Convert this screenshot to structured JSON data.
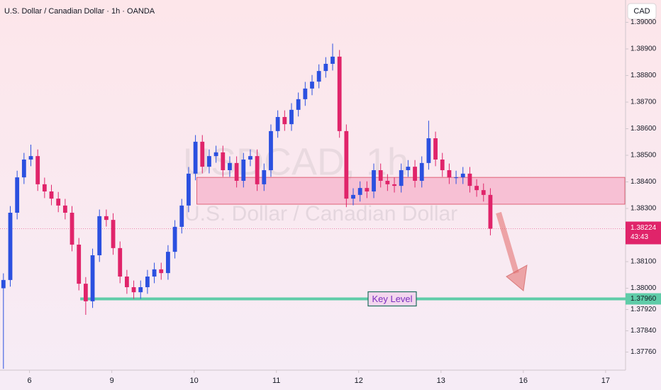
{
  "chart_data": {
    "type": "candlestick",
    "title": "U.S. Dollar / Canadian Dollar · 1h · OANDA",
    "watermark_symbol": "USDCAD, 1h",
    "watermark_name": "U.S. Dollar / Canadian Dollar",
    "currency": "CAD",
    "up_color": "#2b50e0",
    "down_color": "#e0246a",
    "open": [
      1.38,
      1.38031,
      1.38284,
      1.38417,
      1.38484,
      1.38497,
      1.38391,
      1.38364,
      1.38337,
      1.38311,
      1.38284,
      1.38164,
      1.38017,
      1.37951,
      1.38124,
      1.38271,
      1.38257,
      1.38151,
      1.38044,
      1.38004,
      1.37985,
      1.38004,
      1.38044,
      1.38071,
      1.38057,
      1.38137,
      1.38231,
      1.38311,
      1.38431,
      1.38551,
      1.38457,
      1.38497,
      1.38511,
      1.38444,
      1.38471,
      1.38404,
      1.38484,
      1.38497,
      1.38391,
      1.38444,
      1.38591,
      1.38644,
      1.38617,
      1.38671,
      1.38711,
      1.38751,
      1.38777,
      1.38817,
      1.38844,
      1.38871,
      1.38591,
      1.38337,
      1.38351,
      1.38377,
      1.38364,
      1.38444,
      1.38404,
      1.38391,
      1.38385,
      1.38444,
      1.38457,
      1.38404,
      1.38471,
      1.38564,
      1.38484,
      1.38444,
      1.38417,
      1.38417,
      1.38431,
      1.38385,
      1.38369,
      1.38351
    ],
    "high": [
      1.38056,
      1.38309,
      1.38442,
      1.38509,
      1.3854,
      1.38522,
      1.38416,
      1.38389,
      1.38362,
      1.38336,
      1.38309,
      1.38189,
      1.38042,
      1.38149,
      1.38296,
      1.38296,
      1.38282,
      1.38176,
      1.38069,
      1.38029,
      1.38029,
      1.38069,
      1.38096,
      1.38096,
      1.38162,
      1.38256,
      1.38336,
      1.38456,
      1.38576,
      1.38576,
      1.38522,
      1.38536,
      1.38536,
      1.38496,
      1.38496,
      1.38509,
      1.38522,
      1.38522,
      1.38469,
      1.38616,
      1.38669,
      1.38669,
      1.38696,
      1.38736,
      1.38776,
      1.38802,
      1.38842,
      1.38869,
      1.3892,
      1.38896,
      1.38616,
      1.38376,
      1.38402,
      1.38402,
      1.38469,
      1.38469,
      1.38429,
      1.38416,
      1.38469,
      1.38482,
      1.38482,
      1.38496,
      1.3863,
      1.38589,
      1.38509,
      1.38469,
      1.38442,
      1.38456,
      1.38456,
      1.3841,
      1.38394,
      1.38376
    ],
    "low": [
      1.37697,
      1.38006,
      1.38259,
      1.38392,
      1.38459,
      1.38366,
      1.38339,
      1.38312,
      1.38286,
      1.38259,
      1.38139,
      1.37992,
      1.379,
      1.37926,
      1.38099,
      1.38232,
      1.38126,
      1.38019,
      1.37979,
      1.3796,
      1.3796,
      1.37979,
      1.38019,
      1.38032,
      1.38032,
      1.38112,
      1.38206,
      1.38286,
      1.38406,
      1.38432,
      1.38432,
      1.38472,
      1.38419,
      1.38419,
      1.38379,
      1.38379,
      1.38459,
      1.38366,
      1.38366,
      1.38419,
      1.38566,
      1.38592,
      1.38592,
      1.38646,
      1.38686,
      1.38726,
      1.38752,
      1.38792,
      1.38819,
      1.38566,
      1.38305,
      1.38312,
      1.38326,
      1.38339,
      1.38339,
      1.38379,
      1.38366,
      1.3836,
      1.3836,
      1.38419,
      1.38379,
      1.38379,
      1.38446,
      1.38459,
      1.38419,
      1.38392,
      1.38392,
      1.38392,
      1.3836,
      1.38344,
      1.38326,
      1.38199
    ],
    "close": [
      1.38031,
      1.38284,
      1.38417,
      1.38484,
      1.38497,
      1.38391,
      1.38364,
      1.38337,
      1.38311,
      1.38284,
      1.38164,
      1.38017,
      1.37951,
      1.38124,
      1.38271,
      1.38257,
      1.38151,
      1.38044,
      1.38004,
      1.37985,
      1.38004,
      1.38044,
      1.38071,
      1.38057,
      1.38137,
      1.38231,
      1.38311,
      1.38431,
      1.38551,
      1.38457,
      1.38497,
      1.38511,
      1.38444,
      1.38471,
      1.38404,
      1.38484,
      1.38497,
      1.38391,
      1.38444,
      1.38591,
      1.38644,
      1.38617,
      1.38671,
      1.38711,
      1.38751,
      1.38777,
      1.38817,
      1.38844,
      1.38871,
      1.38591,
      1.38337,
      1.38351,
      1.38377,
      1.38364,
      1.38444,
      1.38404,
      1.38391,
      1.38385,
      1.38444,
      1.38457,
      1.38404,
      1.38471,
      1.38564,
      1.38484,
      1.38444,
      1.38417,
      1.38417,
      1.38431,
      1.38385,
      1.38369,
      1.38351,
      1.38224
    ],
    "xlim": [
      -0.5,
      90.5
    ],
    "xticks": [
      {
        "value": 3.8,
        "label": "6"
      },
      {
        "value": 15.8,
        "label": "9"
      },
      {
        "value": 27.8,
        "label": "10"
      },
      {
        "value": 39.8,
        "label": "11"
      },
      {
        "value": 51.8,
        "label": "12"
      },
      {
        "value": 63.8,
        "label": "13"
      },
      {
        "value": 75.8,
        "label": "16"
      },
      {
        "value": 87.8,
        "label": "17"
      }
    ],
    "ylim": [
      1.37692,
      1.39084
    ],
    "yticks": [
      {
        "value": 1.39,
        "label": "1.39000"
      },
      {
        "value": 1.389,
        "label": "1.38900"
      },
      {
        "value": 1.388,
        "label": "1.38800"
      },
      {
        "value": 1.387,
        "label": "1.38700"
      },
      {
        "value": 1.386,
        "label": "1.38600"
      },
      {
        "value": 1.385,
        "label": "1.38500"
      },
      {
        "value": 1.384,
        "label": "1.38400"
      },
      {
        "value": 1.383,
        "label": "1.38300"
      },
      {
        "value": 1.381,
        "label": "1.38100"
      },
      {
        "value": 1.38,
        "label": "1.38000"
      },
      {
        "value": 1.3792,
        "label": "1.37920"
      },
      {
        "value": 1.3784,
        "label": "1.37840"
      },
      {
        "value": 1.3776,
        "label": "1.37760"
      }
    ],
    "last_price": {
      "value": 1.38224,
      "label": "1.38224",
      "countdown": "43:43"
    },
    "key_level": {
      "value": 1.3796,
      "label": "1.37960",
      "start": 11.2,
      "annotation": "Key Level",
      "color": "#5fcca8"
    },
    "zone": {
      "low": 1.38316,
      "high": 1.38417,
      "start": 28.2,
      "color": "#f48fb1"
    }
  }
}
